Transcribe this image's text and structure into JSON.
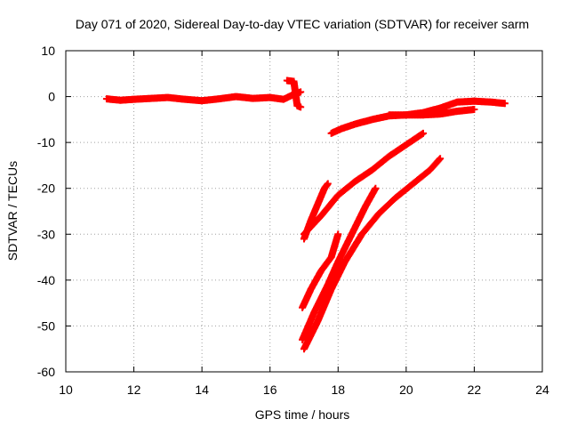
{
  "chart_data": {
    "type": "scatter",
    "title": "Day 071 of 2020, Sidereal Day-to-day VTEC variation (SDTVAR) for receiver sarm",
    "xlabel": "GPS time / hours",
    "ylabel": "SDTVAR / TECUs",
    "xlim": [
      10,
      24
    ],
    "ylim": [
      -60,
      10
    ],
    "xticks": [
      10,
      12,
      14,
      16,
      18,
      20,
      22,
      24
    ],
    "yticks": [
      -60,
      -50,
      -40,
      -30,
      -20,
      -10,
      0,
      10
    ],
    "grid": true,
    "legend": "none",
    "marker": "plus",
    "series_color": "#ff0000",
    "series": [
      {
        "points": [
          [
            11.2,
            -0.5
          ],
          [
            11.6,
            -0.8
          ],
          [
            12.0,
            -0.6
          ],
          [
            12.5,
            -0.4
          ],
          [
            13.0,
            -0.2
          ],
          [
            13.5,
            -0.6
          ],
          [
            14.0,
            -0.9
          ],
          [
            14.5,
            -0.5
          ],
          [
            15.0,
            0.0
          ],
          [
            15.5,
            -0.4
          ],
          [
            16.0,
            -0.2
          ],
          [
            16.4,
            -0.6
          ],
          [
            16.7,
            0.5
          ],
          [
            16.9,
            1.0
          ]
        ]
      },
      {
        "points": [
          [
            16.5,
            3.5
          ],
          [
            16.6,
            3.4
          ],
          [
            16.7,
            3.3
          ],
          [
            16.8,
            -2.0
          ],
          [
            16.9,
            -2.3
          ]
        ]
      },
      {
        "points": [
          [
            17.8,
            -8.0
          ],
          [
            18.1,
            -7.0
          ],
          [
            18.5,
            -6.0
          ],
          [
            19.0,
            -5.0
          ],
          [
            19.5,
            -4.2
          ],
          [
            20.0,
            -4.0
          ],
          [
            20.5,
            -4.0
          ],
          [
            21.0,
            -3.8
          ],
          [
            21.5,
            -3.2
          ],
          [
            22.0,
            -2.8
          ]
        ]
      },
      {
        "points": [
          [
            19.5,
            -4.0
          ],
          [
            20.0,
            -4.0
          ],
          [
            20.5,
            -3.5
          ],
          [
            21.0,
            -2.5
          ],
          [
            21.5,
            -1.2
          ],
          [
            22.0,
            -1.0
          ],
          [
            22.5,
            -1.2
          ],
          [
            22.9,
            -1.5
          ]
        ]
      },
      {
        "points": [
          [
            17.0,
            -31.0
          ],
          [
            17.2,
            -27.0
          ],
          [
            17.4,
            -23.5
          ],
          [
            17.6,
            -20.0
          ],
          [
            17.7,
            -19.0
          ]
        ]
      },
      {
        "points": [
          [
            17.0,
            -30.0
          ],
          [
            17.5,
            -26.0
          ],
          [
            18.0,
            -21.5
          ],
          [
            18.5,
            -18.5
          ],
          [
            19.0,
            -16.0
          ],
          [
            19.5,
            -13.0
          ],
          [
            20.0,
            -10.5
          ],
          [
            20.5,
            -8.0
          ]
        ]
      },
      {
        "points": [
          [
            16.95,
            -46.0
          ],
          [
            17.2,
            -42.0
          ],
          [
            17.5,
            -38.0
          ],
          [
            17.8,
            -35.0
          ],
          [
            18.0,
            -30.0
          ]
        ]
      },
      {
        "points": [
          [
            16.95,
            -53.0
          ],
          [
            17.3,
            -47.0
          ],
          [
            17.7,
            -41.0
          ],
          [
            18.0,
            -36.0
          ],
          [
            18.4,
            -30.0
          ],
          [
            18.8,
            -24.0
          ],
          [
            19.1,
            -20.0
          ]
        ]
      },
      {
        "points": [
          [
            17.0,
            -55.0
          ],
          [
            17.4,
            -49.0
          ],
          [
            17.8,
            -42.0
          ],
          [
            18.2,
            -36.0
          ],
          [
            18.7,
            -30.0
          ],
          [
            19.2,
            -25.5
          ],
          [
            19.7,
            -22.0
          ],
          [
            20.2,
            -19.0
          ],
          [
            20.7,
            -16.0
          ],
          [
            21.0,
            -13.5
          ]
        ]
      }
    ]
  }
}
